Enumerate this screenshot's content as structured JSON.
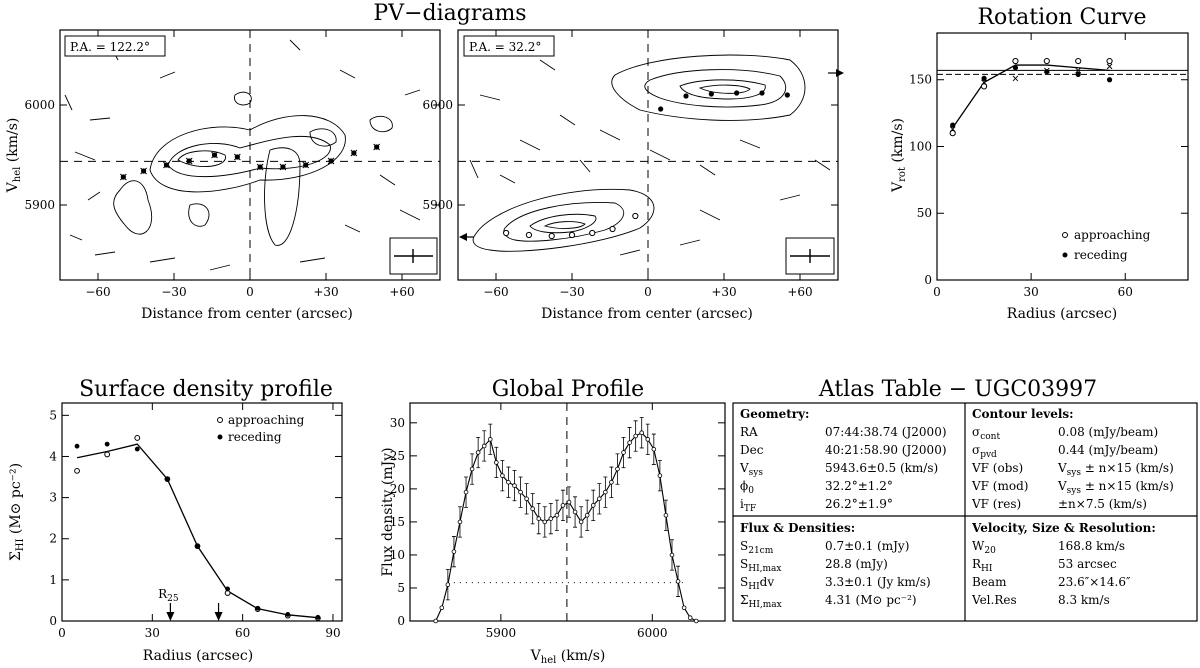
{
  "titles": {
    "pv": "PV−diagrams",
    "rc": "Rotation Curve",
    "sd": "Surface density profile",
    "gp": "Global Profile",
    "atlas": "Atlas Table − UGC03997"
  },
  "pv": {
    "xlabel": "Distance from center (arcsec)",
    "ylabel_main": "V",
    "ylabel_sub": "hel",
    "ylabel_unit": " (km/s)",
    "xticks": [
      -60,
      -30,
      0,
      30,
      60
    ],
    "xtick_labels": [
      "−60",
      "−30",
      "0",
      "+30",
      "+60"
    ],
    "yticks": [
      5900,
      6000
    ],
    "xlim": [
      -75,
      75
    ],
    "ylim": [
      5825,
      6075
    ],
    "vsys": 5943.6,
    "panel1": {
      "label": "P.A. = 122.2°",
      "points_x": [
        -50,
        -42,
        -33,
        -24,
        -14,
        -5,
        4,
        13,
        22,
        32,
        41,
        50
      ],
      "points_y": [
        5928,
        5934,
        5940,
        5944,
        5950,
        5948,
        5938,
        5938,
        5940,
        5944,
        5952,
        5958
      ]
    },
    "panel2": {
      "label": "P.A. = 32.2°",
      "approach_x": [
        -56,
        -47,
        -38,
        -30,
        -22,
        -14,
        -5
      ],
      "approach_y": [
        5872,
        5870,
        5869,
        5870,
        5872,
        5876,
        5889
      ],
      "recede_x": [
        5,
        15,
        25,
        35,
        45,
        55
      ],
      "recede_y": [
        5996,
        6009,
        6011,
        6012,
        6012,
        6010
      ]
    }
  },
  "rc": {
    "xlabel": "Radius (arcsec)",
    "ylabel_main": "V",
    "ylabel_sub": "rot",
    "ylabel_unit": " (km/s)",
    "xticks": [
      0,
      30,
      60
    ],
    "yticks": [
      0,
      50,
      100,
      150
    ],
    "xlim": [
      0,
      80
    ],
    "ylim": [
      0,
      185
    ],
    "approaching_label": "approaching",
    "receding_label": "receding",
    "radii": [
      5,
      15,
      25,
      35,
      45,
      55
    ],
    "model": [
      114,
      148,
      161,
      161,
      159,
      157
    ],
    "approaching": [
      110,
      145,
      164,
      164,
      164,
      164
    ],
    "receding": [
      116,
      151,
      159,
      156,
      154,
      150
    ],
    "crosses": [
      113,
      148,
      151,
      157,
      157,
      160
    ],
    "hline_a": 157,
    "hline_b": 154
  },
  "sd": {
    "xlabel": "Radius (arcsec)",
    "ylabel_main": "Σ",
    "ylabel_sub": "HI",
    "ylabel_unit": " (M⊙ pc⁻²)",
    "xticks": [
      0,
      30,
      60,
      90
    ],
    "yticks": [
      0,
      1,
      2,
      3,
      4,
      5
    ],
    "xlim": [
      0,
      93
    ],
    "ylim": [
      0,
      5.3
    ],
    "approaching_label": "approaching",
    "receding_label": "receding",
    "r25_label": "R",
    "r25_sub": "25",
    "r25_x": 36,
    "arrow2_x": 52,
    "radii": [
      5,
      15,
      25,
      35,
      45,
      55,
      65,
      75,
      85
    ],
    "model": [
      3.97,
      4.12,
      4.3,
      3.45,
      1.82,
      0.73,
      0.3,
      0.15,
      0.08
    ],
    "approaching": [
      3.65,
      4.05,
      4.45,
      3.45,
      1.82,
      0.68,
      0.29,
      0.13,
      0.07
    ],
    "receding": [
      4.25,
      4.3,
      4.18,
      3.45,
      1.82,
      0.78,
      0.31,
      0.16,
      0.09
    ]
  },
  "gp": {
    "xlabel_main": "V",
    "xlabel_sub": "hel",
    "xlabel_unit": " (km/s)",
    "ylabel": "Flux density (mJy)",
    "xticks": [
      5900,
      6000
    ],
    "yticks": [
      0,
      5,
      10,
      15,
      20,
      25,
      30
    ],
    "xlim": [
      5840,
      6048
    ],
    "ylim": [
      0,
      33
    ],
    "vsys": 5943.6,
    "dotted_level": 5.8,
    "v": [
      5857,
      5861,
      5865,
      5869,
      5873,
      5877,
      5881,
      5885,
      5889,
      5893,
      5897,
      5901,
      5905,
      5909,
      5913,
      5917,
      5921,
      5925,
      5929,
      5933,
      5937,
      5941,
      5945,
      5949,
      5953,
      5957,
      5961,
      5965,
      5969,
      5973,
      5977,
      5981,
      5985,
      5989,
      5993,
      5997,
      6001,
      6005,
      6009,
      6013,
      6017,
      6021,
      6025,
      6029
    ],
    "flux": [
      0,
      2,
      5.5,
      10.5,
      15,
      19.5,
      23,
      25.5,
      26.5,
      27.5,
      24,
      22,
      21,
      20.5,
      19.5,
      18.5,
      17,
      15.5,
      15,
      15.5,
      16,
      17.5,
      18,
      16.5,
      15,
      16,
      17.5,
      18.5,
      19.5,
      21,
      23,
      25.5,
      27,
      28,
      28.5,
      27.5,
      26,
      22,
      16,
      10,
      6,
      2,
      0.5,
      0
    ]
  },
  "atlas": {
    "geometry_title": "Geometry:",
    "geometry": [
      {
        "k": "RA",
        "ks": "",
        "v": "07:44:38.74 (J2000)"
      },
      {
        "k": "Dec",
        "ks": "",
        "v": "40:21:58.90 (J2000)"
      },
      {
        "k": "V",
        "ks": "sys",
        "v": "5943.6±0.5 (km/s)"
      },
      {
        "k": "ϕ",
        "ks": "0",
        "v": "32.2°±1.2°"
      },
      {
        "k": "i",
        "ks": "TF",
        "v": "26.2°±1.9°"
      }
    ],
    "contour_title": "Contour levels:",
    "contour": [
      {
        "k": "σ",
        "ks": "cont",
        "v": "0.08 (mJy/beam)"
      },
      {
        "k": "σ",
        "ks": "pvd",
        "v": "0.44 (mJy/beam)"
      },
      {
        "k": "VF (obs)",
        "ks": "",
        "v": "V",
        "vs": "sys",
        "vt": " ± n×15 (km/s)"
      },
      {
        "k": "VF (mod)",
        "ks": "",
        "v": "V",
        "vs": "sys",
        "vt": " ± n×15 (km/s)"
      },
      {
        "k": "VF (res)",
        "ks": "",
        "v": "±n×7.5 (km/s)"
      }
    ],
    "flux_title": "Flux & Densities:",
    "flux": [
      {
        "k": "S",
        "ks": "21cm",
        "v": "0.7±0.1 (mJy)"
      },
      {
        "k": "S",
        "ks": "HI,max",
        "v": "28.8 (mJy)"
      },
      {
        "k": "S",
        "ks": "HI",
        "kt": "dv",
        "v": "3.3±0.1 (Jy km/s)"
      },
      {
        "k": "Σ",
        "ks": "HI,max",
        "v": "4.31 (M⊙ pc⁻²)"
      }
    ],
    "vel_title": "Velocity, Size & Resolution:",
    "vel": [
      {
        "k": "W",
        "ks": "20",
        "v": "168.8 km/s"
      },
      {
        "k": "R",
        "ks": "HI",
        "v": "53 arcsec"
      },
      {
        "k": "Beam",
        "ks": "",
        "v": "23.6″×14.6″"
      },
      {
        "k": "Vel.Res",
        "ks": "",
        "v": "8.3 km/s"
      }
    ]
  }
}
